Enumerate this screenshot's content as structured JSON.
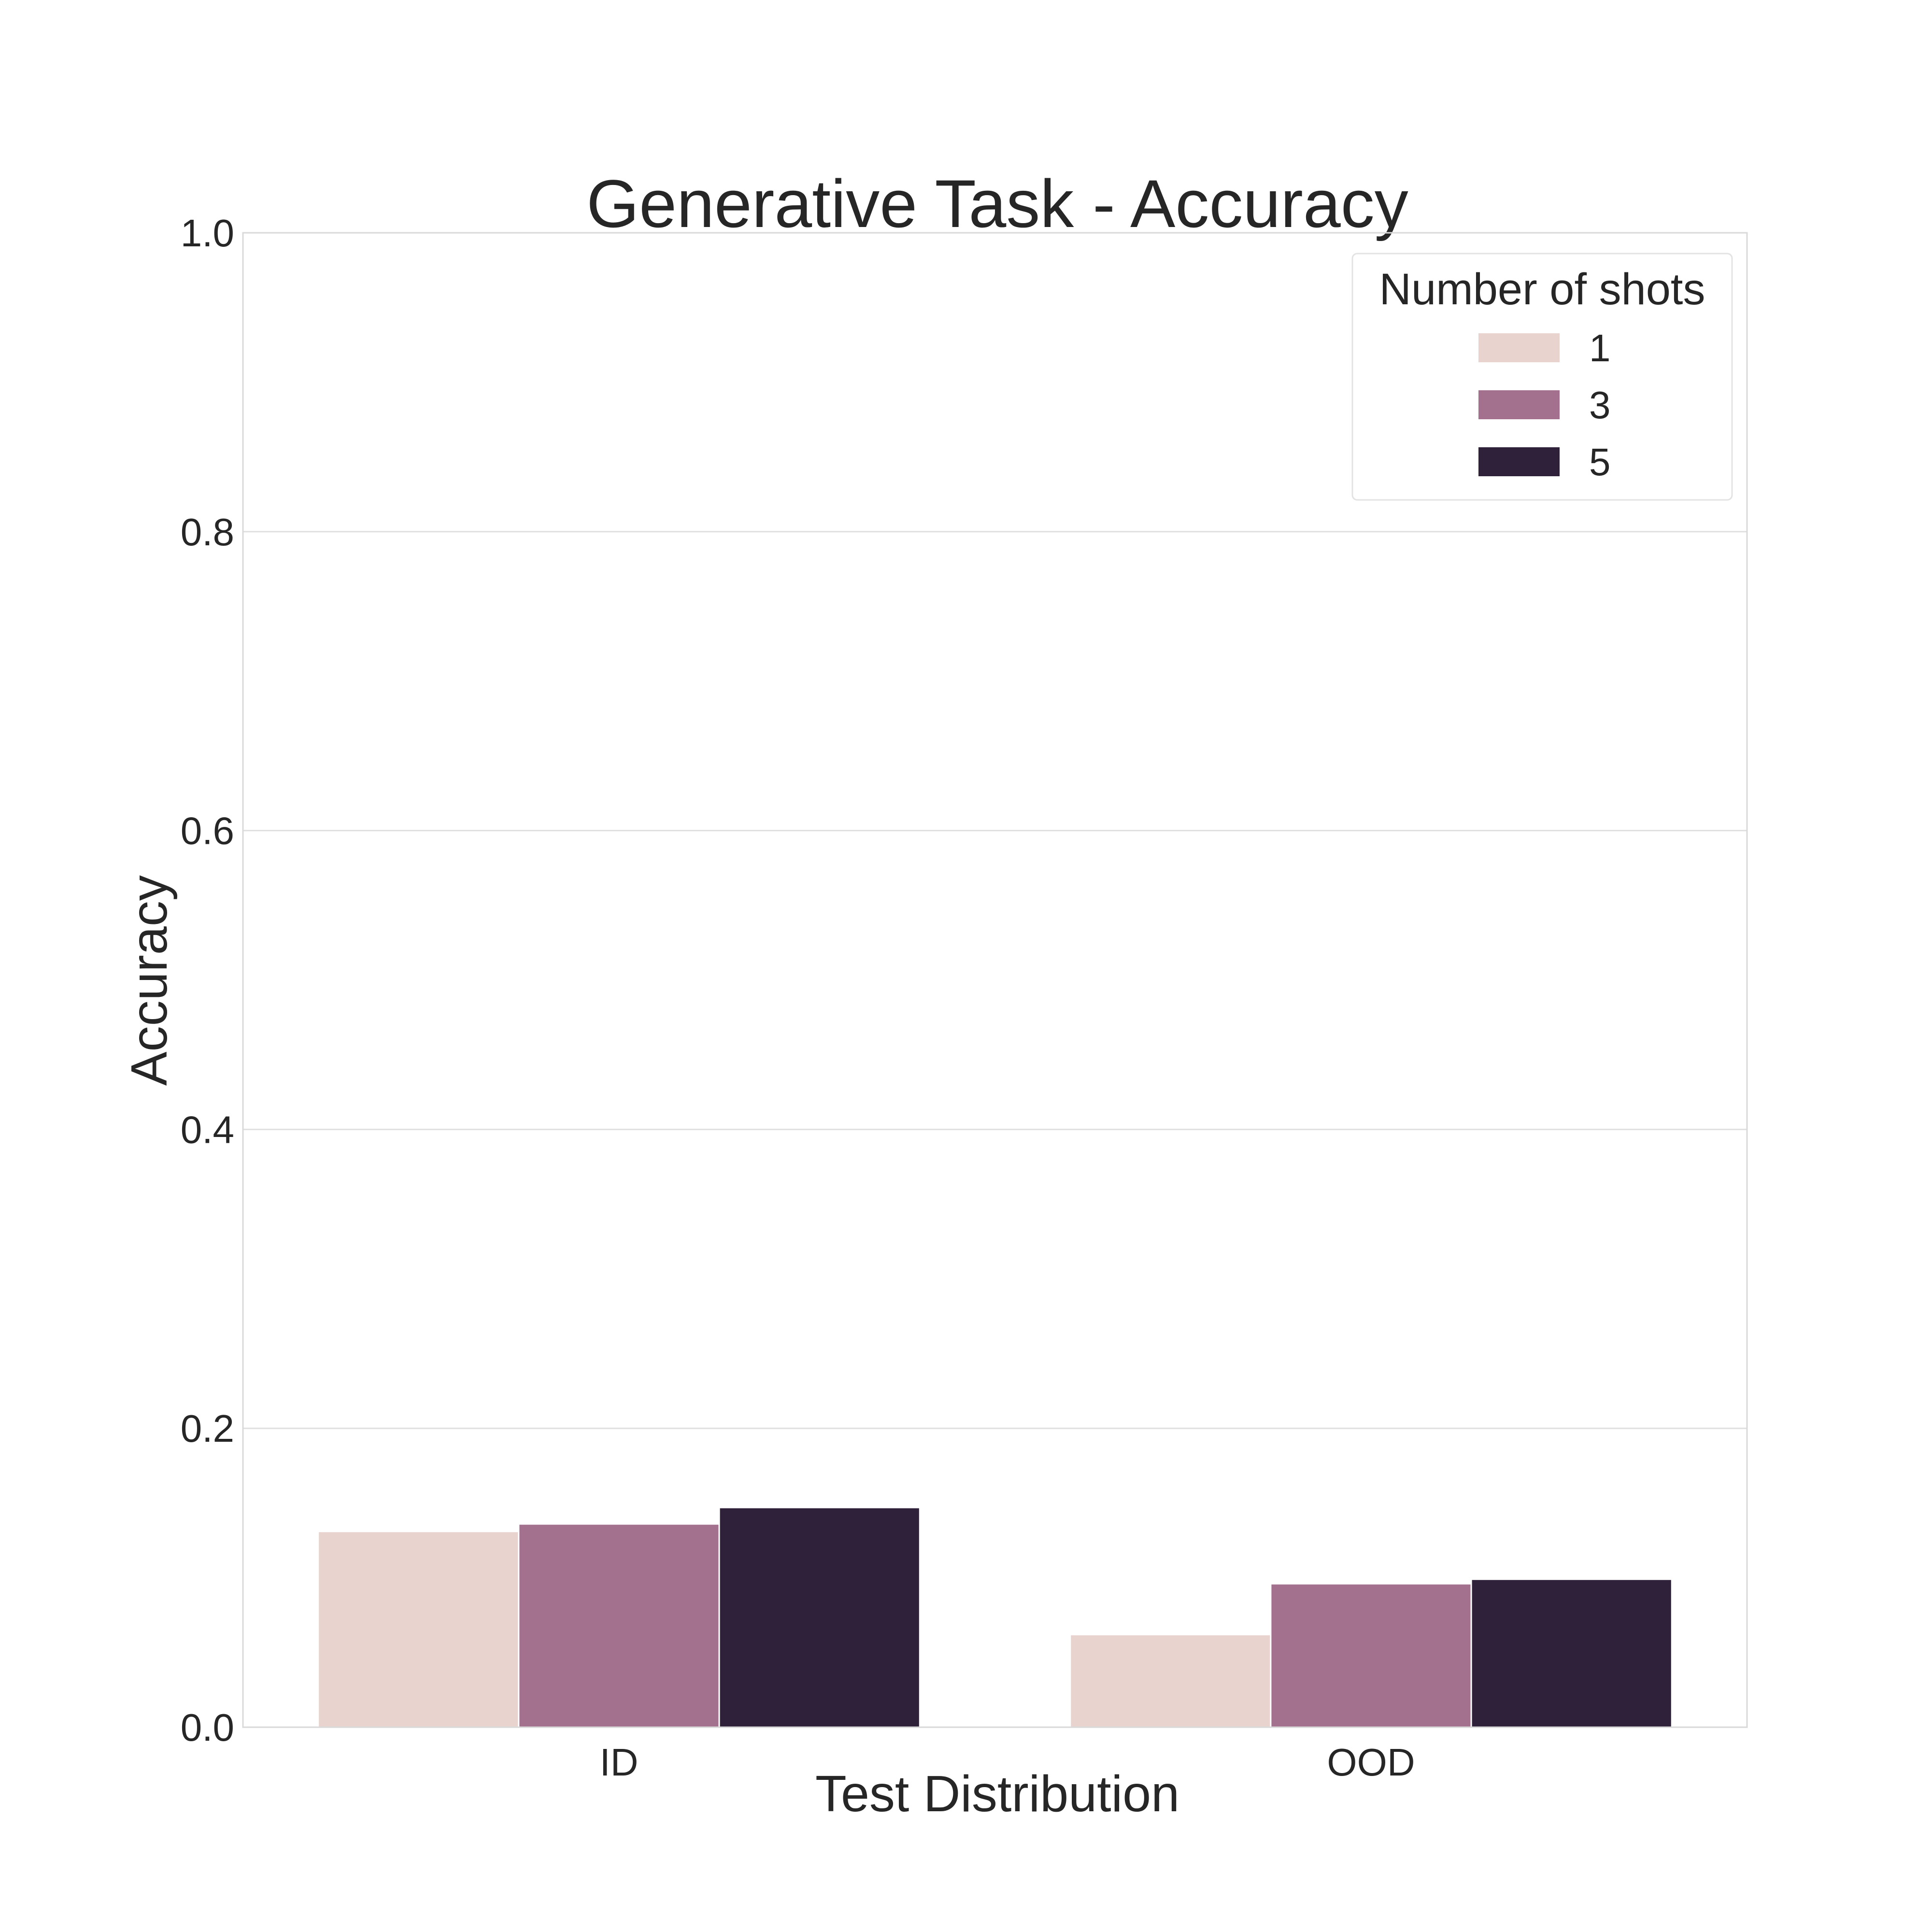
{
  "chart_data": {
    "type": "bar",
    "title": "Generative Task - Accuracy",
    "xlabel": "Test Distribution",
    "ylabel": "Accuracy",
    "categories": [
      "ID",
      "OOD"
    ],
    "ylim": [
      0,
      1.0
    ],
    "yticks": [
      "0.0",
      "0.2",
      "0.4",
      "0.6",
      "0.8",
      "1.0"
    ],
    "grid": true,
    "legend": {
      "title": "Number of shots",
      "position": "top-right"
    },
    "series": [
      {
        "name": "1",
        "color": "#e8d3cf",
        "values": [
          0.131,
          0.062
        ]
      },
      {
        "name": "3",
        "color": "#a3708d",
        "values": [
          0.136,
          0.096
        ]
      },
      {
        "name": "5",
        "color": "#30213b",
        "values": [
          0.147,
          0.099
        ]
      }
    ]
  }
}
